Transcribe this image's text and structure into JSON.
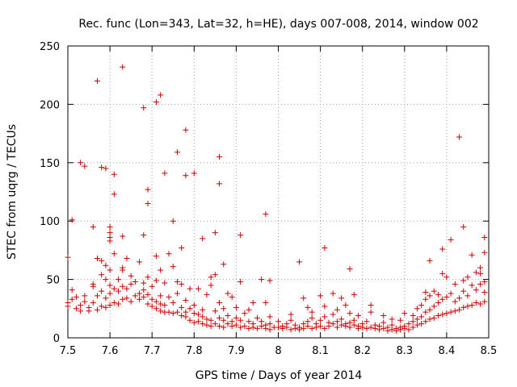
{
  "chart_data": {
    "type": "scatter",
    "title": "Rec. func (Lon=343, Lat=32, h=HE), days 007-008, 2014, window 002",
    "xlabel": "GPS time / Days of year 2014",
    "ylabel": "STEC from uqrg / TECUs",
    "xlim": [
      7.5,
      8.5
    ],
    "ylim": [
      0,
      250
    ],
    "xticks": [
      7.5,
      7.6,
      7.7,
      7.8,
      7.9,
      8.0,
      8.1,
      8.2,
      8.3,
      8.4,
      8.5
    ],
    "xtick_labels": [
      "7.5",
      "7.6",
      "7.7",
      "7.8",
      "7.9",
      "8",
      "8.1",
      "8.2",
      "8.3",
      "8.4",
      "8.5"
    ],
    "yticks": [
      0,
      50,
      100,
      150,
      200,
      250
    ],
    "ytick_labels": [
      "0",
      "50",
      "100",
      "150",
      "200",
      "250"
    ],
    "grid": true,
    "marker": "+",
    "marker_color": "#cc0000",
    "series": [
      {
        "name": "STEC",
        "points": [
          [
            7.5,
            69
          ],
          [
            7.51,
            101
          ],
          [
            7.53,
            150
          ],
          [
            7.54,
            147
          ],
          [
            7.56,
            95
          ],
          [
            7.57,
            220
          ],
          [
            7.58,
            146
          ],
          [
            7.59,
            145
          ],
          [
            7.6,
            95
          ],
          [
            7.6,
            90
          ],
          [
            7.6,
            86
          ],
          [
            7.6,
            83
          ],
          [
            7.61,
            140
          ],
          [
            7.61,
            123
          ],
          [
            7.63,
            232
          ],
          [
            7.63,
            87
          ],
          [
            7.68,
            197
          ],
          [
            7.68,
            88
          ],
          [
            7.69,
            127
          ],
          [
            7.69,
            115
          ],
          [
            7.71,
            202
          ],
          [
            7.72,
            208
          ],
          [
            7.73,
            141
          ],
          [
            7.75,
            100
          ],
          [
            7.76,
            159
          ],
          [
            7.77,
            77
          ],
          [
            7.78,
            178
          ],
          [
            7.78,
            139
          ],
          [
            7.8,
            141
          ],
          [
            7.82,
            85
          ],
          [
            7.85,
            90
          ],
          [
            7.86,
            155
          ],
          [
            7.86,
            132
          ],
          [
            7.87,
            63
          ],
          [
            7.91,
            88
          ],
          [
            7.97,
            106
          ],
          [
            7.96,
            50
          ],
          [
            7.98,
            49
          ],
          [
            8.05,
            65
          ],
          [
            8.11,
            77
          ],
          [
            8.17,
            59
          ],
          [
            8.36,
            66
          ],
          [
            8.39,
            76
          ],
          [
            8.41,
            84
          ],
          [
            8.43,
            172
          ],
          [
            8.44,
            95
          ],
          [
            8.46,
            71
          ],
          [
            8.49,
            86
          ],
          [
            8.49,
            73
          ],
          [
            8.48,
            60
          ],
          [
            8.48,
            55
          ],
          [
            7.5,
            30
          ],
          [
            7.5,
            27
          ],
          [
            7.51,
            33
          ],
          [
            7.51,
            41
          ],
          [
            7.52,
            25
          ],
          [
            7.52,
            35
          ],
          [
            7.53,
            28
          ],
          [
            7.53,
            23
          ],
          [
            7.54,
            31
          ],
          [
            7.54,
            36
          ],
          [
            7.55,
            26
          ],
          [
            7.55,
            23
          ],
          [
            7.56,
            30
          ],
          [
            7.56,
            44
          ],
          [
            7.56,
            46
          ],
          [
            7.57,
            24
          ],
          [
            7.57,
            36
          ],
          [
            7.57,
            68
          ],
          [
            7.58,
            27
          ],
          [
            7.58,
            40
          ],
          [
            7.58,
            54
          ],
          [
            7.58,
            66
          ],
          [
            7.59,
            26
          ],
          [
            7.59,
            34
          ],
          [
            7.59,
            50
          ],
          [
            7.59,
            62
          ],
          [
            7.6,
            28
          ],
          [
            7.6,
            38
          ],
          [
            7.6,
            45
          ],
          [
            7.6,
            58
          ],
          [
            7.61,
            30
          ],
          [
            7.61,
            42
          ],
          [
            7.61,
            72
          ],
          [
            7.62,
            29
          ],
          [
            7.62,
            40
          ],
          [
            7.62,
            50
          ],
          [
            7.63,
            33
          ],
          [
            7.63,
            44
          ],
          [
            7.63,
            58
          ],
          [
            7.63,
            60
          ],
          [
            7.64,
            34
          ],
          [
            7.64,
            42
          ],
          [
            7.64,
            68
          ],
          [
            7.65,
            31
          ],
          [
            7.65,
            46
          ],
          [
            7.65,
            53
          ],
          [
            7.66,
            36
          ],
          [
            7.66,
            48
          ],
          [
            7.67,
            33
          ],
          [
            7.67,
            38
          ],
          [
            7.67,
            65
          ],
          [
            7.68,
            35
          ],
          [
            7.68,
            41
          ],
          [
            7.68,
            47
          ],
          [
            7.69,
            29
          ],
          [
            7.69,
            37
          ],
          [
            7.69,
            52
          ],
          [
            7.7,
            27
          ],
          [
            7.7,
            33
          ],
          [
            7.7,
            44
          ],
          [
            7.71,
            25
          ],
          [
            7.71,
            31
          ],
          [
            7.71,
            49
          ],
          [
            7.71,
            70
          ],
          [
            7.72,
            23
          ],
          [
            7.72,
            29
          ],
          [
            7.72,
            36
          ],
          [
            7.72,
            58
          ],
          [
            7.73,
            22
          ],
          [
            7.73,
            28
          ],
          [
            7.73,
            47
          ],
          [
            7.74,
            22
          ],
          [
            7.74,
            35
          ],
          [
            7.74,
            72
          ],
          [
            7.75,
            21
          ],
          [
            7.75,
            30
          ],
          [
            7.75,
            61
          ],
          [
            7.76,
            22
          ],
          [
            7.76,
            38
          ],
          [
            7.76,
            48
          ],
          [
            7.77,
            19
          ],
          [
            7.77,
            26
          ],
          [
            7.77,
            46
          ],
          [
            7.78,
            18
          ],
          [
            7.78,
            22
          ],
          [
            7.78,
            32
          ],
          [
            7.79,
            15
          ],
          [
            7.79,
            25
          ],
          [
            7.79,
            42
          ],
          [
            7.8,
            13
          ],
          [
            7.8,
            21
          ],
          [
            7.8,
            28
          ],
          [
            7.81,
            14
          ],
          [
            7.81,
            20
          ],
          [
            7.81,
            42
          ],
          [
            7.82,
            12
          ],
          [
            7.82,
            18
          ],
          [
            7.82,
            24
          ],
          [
            7.83,
            11
          ],
          [
            7.83,
            16
          ],
          [
            7.83,
            37
          ],
          [
            7.84,
            10
          ],
          [
            7.84,
            15
          ],
          [
            7.84,
            45
          ],
          [
            7.84,
            52
          ],
          [
            7.85,
            12
          ],
          [
            7.85,
            23
          ],
          [
            7.85,
            54
          ],
          [
            7.86,
            10
          ],
          [
            7.86,
            17
          ],
          [
            7.86,
            30
          ],
          [
            7.87,
            9
          ],
          [
            7.87,
            15
          ],
          [
            7.87,
            25
          ],
          [
            7.88,
            12
          ],
          [
            7.88,
            19
          ],
          [
            7.88,
            38
          ],
          [
            7.89,
            10
          ],
          [
            7.89,
            14
          ],
          [
            7.89,
            35
          ],
          [
            7.9,
            11
          ],
          [
            7.9,
            17
          ],
          [
            7.9,
            26
          ],
          [
            7.91,
            9
          ],
          [
            7.91,
            15
          ],
          [
            7.91,
            48
          ],
          [
            7.92,
            10
          ],
          [
            7.92,
            21
          ],
          [
            7.93,
            8
          ],
          [
            7.93,
            14
          ],
          [
            7.93,
            24
          ],
          [
            7.94,
            9
          ],
          [
            7.94,
            12
          ],
          [
            7.94,
            30
          ],
          [
            7.95,
            8
          ],
          [
            7.95,
            17
          ],
          [
            7.96,
            10
          ],
          [
            7.96,
            14
          ],
          [
            7.97,
            8
          ],
          [
            7.97,
            11
          ],
          [
            7.97,
            30
          ],
          [
            7.98,
            7
          ],
          [
            7.98,
            12
          ],
          [
            7.98,
            18
          ],
          [
            7.99,
            9
          ],
          [
            8.0,
            9
          ],
          [
            8.0,
            14
          ],
          [
            8.01,
            8
          ],
          [
            8.01,
            10
          ],
          [
            8.02,
            9
          ],
          [
            8.02,
            12
          ],
          [
            8.03,
            7
          ],
          [
            8.03,
            15
          ],
          [
            8.03,
            20
          ],
          [
            8.04,
            8
          ],
          [
            8.04,
            11
          ],
          [
            8.05,
            9
          ],
          [
            8.05,
            7
          ],
          [
            8.06,
            8
          ],
          [
            8.06,
            12
          ],
          [
            8.06,
            34
          ],
          [
            8.07,
            10
          ],
          [
            8.07,
            14
          ],
          [
            8.07,
            26
          ],
          [
            8.08,
            8
          ],
          [
            8.08,
            17
          ],
          [
            8.08,
            22
          ],
          [
            8.09,
            9
          ],
          [
            8.09,
            12
          ],
          [
            8.1,
            10
          ],
          [
            8.1,
            15
          ],
          [
            8.1,
            36
          ],
          [
            8.11,
            8
          ],
          [
            8.11,
            18
          ],
          [
            8.11,
            27
          ],
          [
            8.12,
            10
          ],
          [
            8.12,
            13
          ],
          [
            8.13,
            12
          ],
          [
            8.13,
            20
          ],
          [
            8.13,
            38
          ],
          [
            8.14,
            9
          ],
          [
            8.14,
            14
          ],
          [
            8.14,
            24
          ],
          [
            8.15,
            11
          ],
          [
            8.15,
            16
          ],
          [
            8.15,
            34
          ],
          [
            8.16,
            10
          ],
          [
            8.16,
            12
          ],
          [
            8.16,
            28
          ],
          [
            8.17,
            9
          ],
          [
            8.17,
            13
          ],
          [
            8.17,
            21
          ],
          [
            8.18,
            11
          ],
          [
            8.18,
            15
          ],
          [
            8.18,
            37
          ],
          [
            8.19,
            8
          ],
          [
            8.19,
            10
          ],
          [
            8.19,
            19
          ],
          [
            8.2,
            9
          ],
          [
            8.2,
            12
          ],
          [
            8.21,
            8
          ],
          [
            8.21,
            14
          ],
          [
            8.22,
            9
          ],
          [
            8.22,
            22
          ],
          [
            8.22,
            28
          ],
          [
            8.23,
            8
          ],
          [
            8.23,
            11
          ],
          [
            8.24,
            7
          ],
          [
            8.24,
            10
          ],
          [
            8.25,
            8
          ],
          [
            8.25,
            13
          ],
          [
            8.25,
            19
          ],
          [
            8.26,
            6
          ],
          [
            8.26,
            9
          ],
          [
            8.27,
            7
          ],
          [
            8.27,
            11
          ],
          [
            8.27,
            16
          ],
          [
            8.28,
            6
          ],
          [
            8.28,
            8
          ],
          [
            8.29,
            7
          ],
          [
            8.29,
            9
          ],
          [
            8.29,
            15
          ],
          [
            8.3,
            8
          ],
          [
            8.3,
            10
          ],
          [
            8.3,
            21
          ],
          [
            8.31,
            7
          ],
          [
            8.31,
            12
          ],
          [
            8.32,
            9
          ],
          [
            8.32,
            14
          ],
          [
            8.32,
            19
          ],
          [
            8.33,
            11
          ],
          [
            8.33,
            16
          ],
          [
            8.33,
            25
          ],
          [
            8.34,
            12
          ],
          [
            8.34,
            18
          ],
          [
            8.34,
            28
          ],
          [
            8.35,
            14
          ],
          [
            8.35,
            22
          ],
          [
            8.35,
            33
          ],
          [
            8.35,
            39
          ],
          [
            8.36,
            16
          ],
          [
            8.36,
            24
          ],
          [
            8.36,
            36
          ],
          [
            8.37,
            17
          ],
          [
            8.37,
            27
          ],
          [
            8.37,
            40
          ],
          [
            8.38,
            19
          ],
          [
            8.38,
            30
          ],
          [
            8.38,
            37
          ],
          [
            8.39,
            20
          ],
          [
            8.39,
            33
          ],
          [
            8.39,
            55
          ],
          [
            8.4,
            21
          ],
          [
            8.4,
            35
          ],
          [
            8.4,
            52
          ],
          [
            8.41,
            22
          ],
          [
            8.41,
            38
          ],
          [
            8.42,
            23
          ],
          [
            8.42,
            31
          ],
          [
            8.42,
            46
          ],
          [
            8.43,
            24
          ],
          [
            8.43,
            34
          ],
          [
            8.44,
            26
          ],
          [
            8.44,
            40
          ],
          [
            8.44,
            49
          ],
          [
            8.45,
            27
          ],
          [
            8.45,
            36
          ],
          [
            8.45,
            52
          ],
          [
            8.46,
            28
          ],
          [
            8.46,
            45
          ],
          [
            8.47,
            30
          ],
          [
            8.47,
            41
          ],
          [
            8.47,
            56
          ],
          [
            8.48,
            29
          ],
          [
            8.48,
            46
          ],
          [
            8.49,
            31
          ],
          [
            8.49,
            39
          ],
          [
            8.49,
            48
          ]
        ]
      }
    ]
  }
}
